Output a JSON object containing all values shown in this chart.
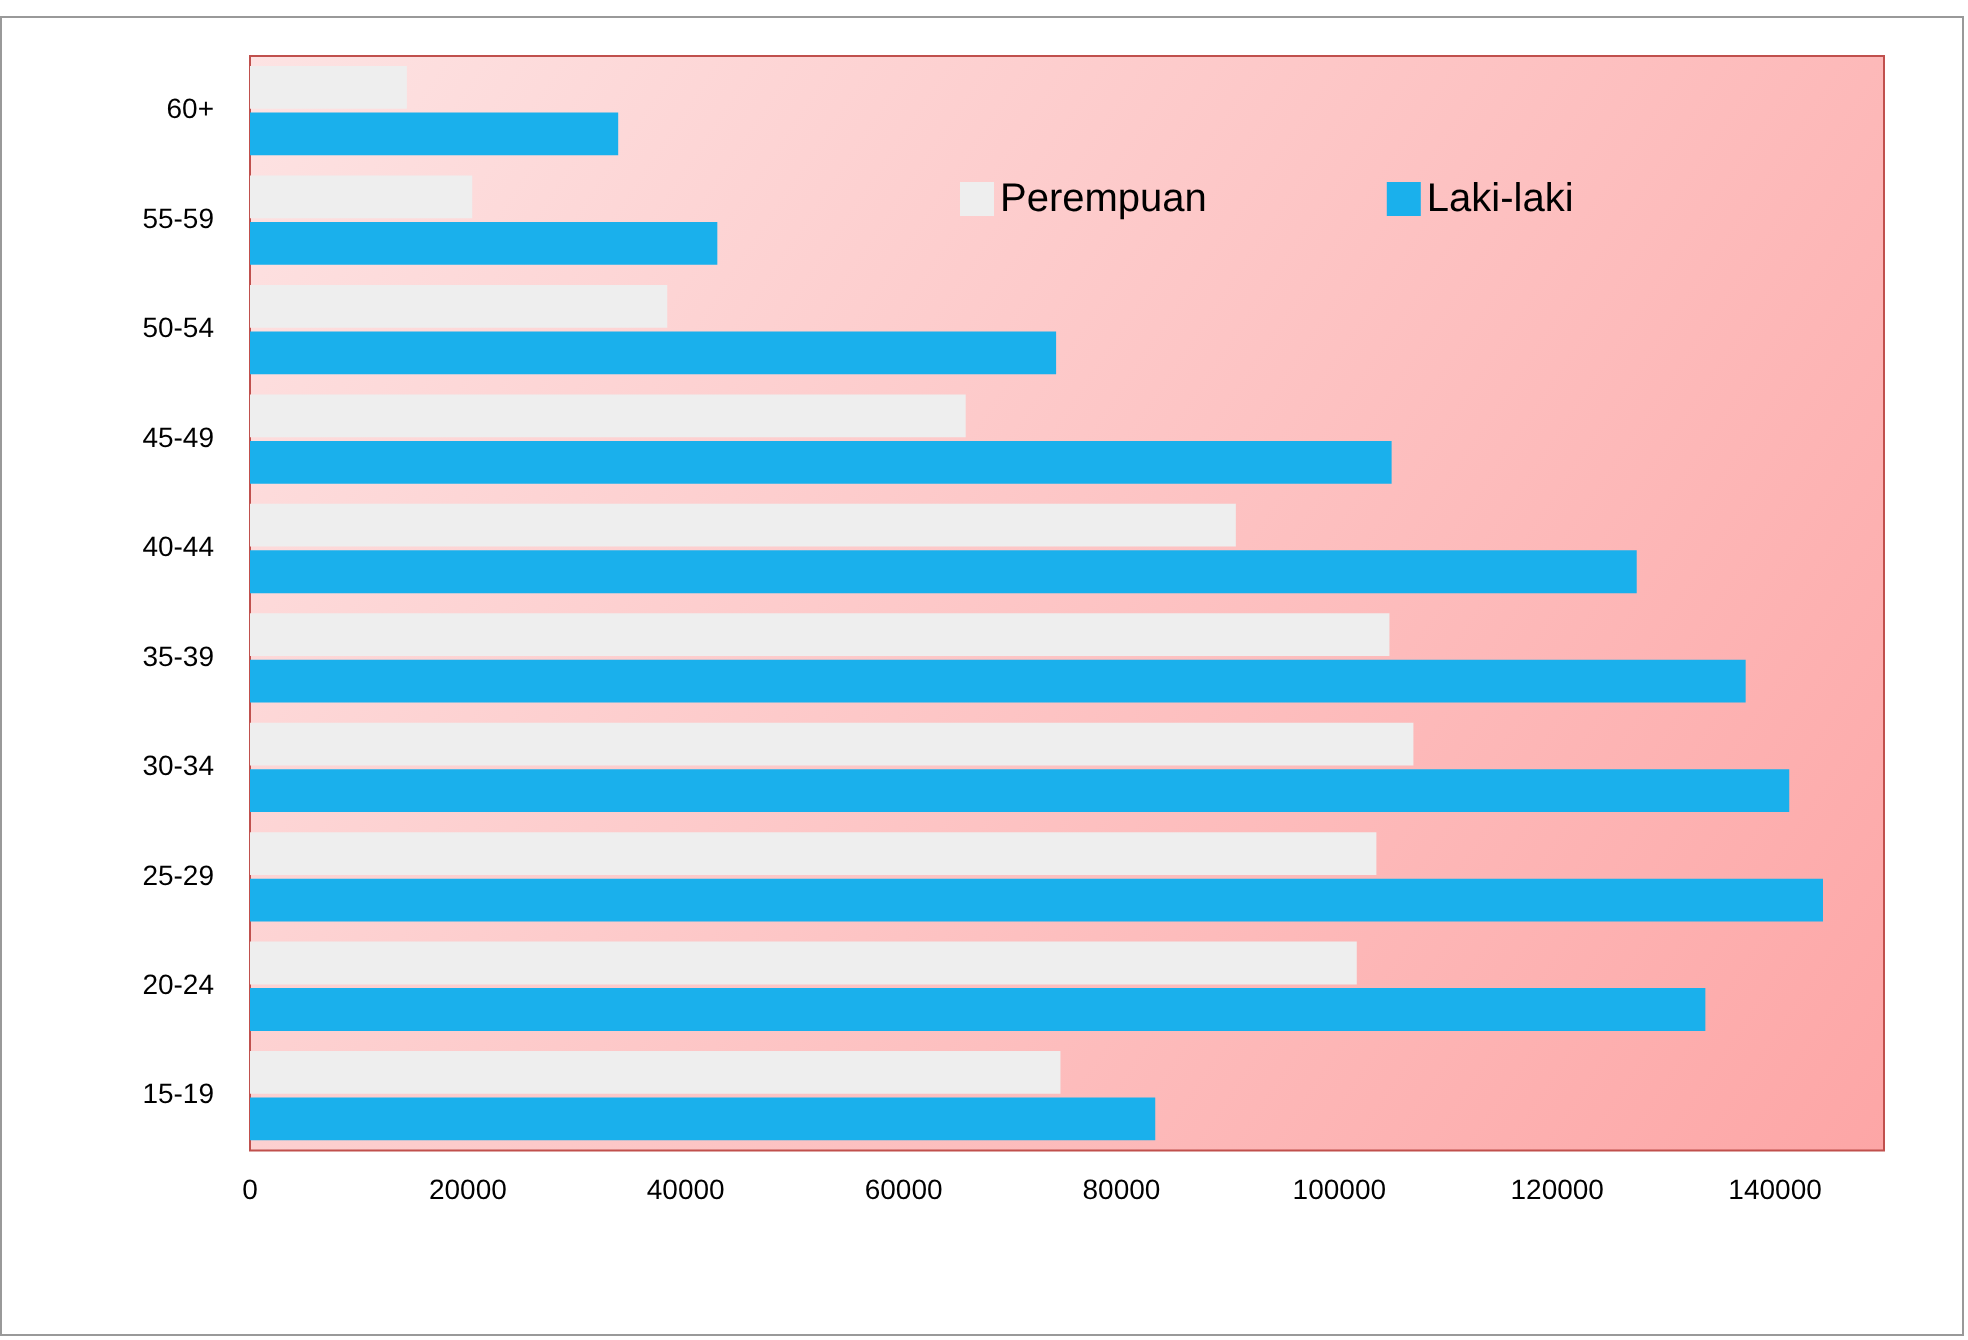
{
  "chart_data": {
    "type": "bar",
    "orientation": "horizontal",
    "categories": [
      "60+",
      "55-59",
      "50-54",
      "45-49",
      "40-44",
      "35-39",
      "30-34",
      "25-29",
      "20-24",
      "15-19"
    ],
    "series": [
      {
        "name": "Perempuan",
        "color": "#eeeeee",
        "values": [
          14400,
          20400,
          38300,
          65700,
          90500,
          104600,
          106800,
          103400,
          101600,
          74400
        ]
      },
      {
        "name": "Laki-laki",
        "color": "#1ab0ec",
        "values": [
          33800,
          42900,
          74000,
          104800,
          127300,
          137300,
          141300,
          144400,
          133600,
          83100
        ]
      }
    ],
    "xlim": [
      0,
      150000
    ],
    "xticks": [
      0,
      20000,
      40000,
      60000,
      80000,
      100000,
      120000,
      140000
    ],
    "grid": false,
    "legend": "top right"
  }
}
